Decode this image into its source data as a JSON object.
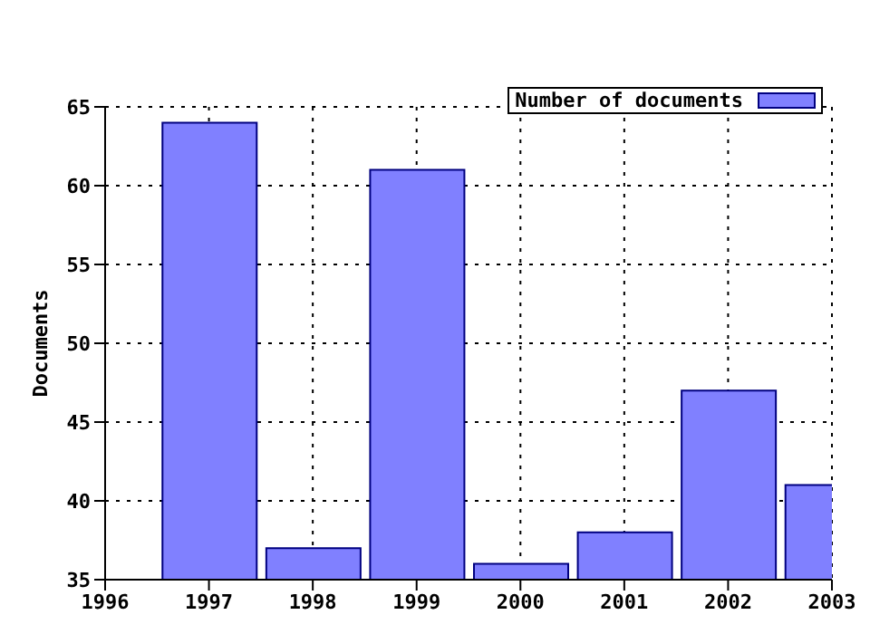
{
  "chart_data": {
    "type": "bar",
    "ylabel": "Documents",
    "x": [
      1997,
      1998,
      1999,
      2000,
      2001,
      2002,
      2003
    ],
    "series": [
      {
        "name": "Number of documents",
        "color": "#8080ff",
        "values": [
          64,
          37,
          61,
          36,
          38,
          47,
          41
        ]
      }
    ],
    "xlim": [
      1996,
      2003
    ],
    "xticks": [
      1996,
      1997,
      1998,
      1999,
      2000,
      2001,
      2002,
      2003
    ],
    "ylim": [
      35,
      65
    ],
    "yticks": [
      35,
      40,
      45,
      50,
      55,
      60,
      65
    ],
    "grid": true,
    "legend": "top right"
  }
}
